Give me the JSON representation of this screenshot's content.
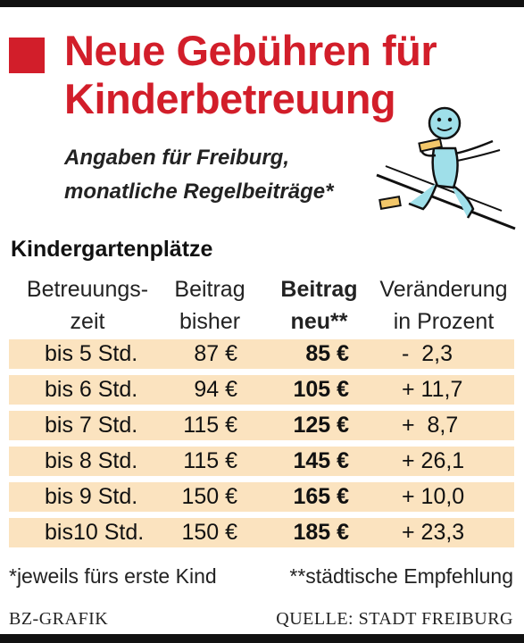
{
  "title": "Neue Gebühren für Kinderbetreuung",
  "subtitle_lines": [
    "Angaben für Freiburg,",
    "monatliche Regelbeiträge*"
  ],
  "section_title": "Kindergartenplätze",
  "headers": {
    "time": [
      "Betreuungs-",
      "zeit"
    ],
    "old": [
      "Beitrag",
      "bisher"
    ],
    "new": [
      "Beitrag",
      "neu**"
    ],
    "change": [
      "Veränderung",
      "in Prozent"
    ]
  },
  "colors": {
    "accent": "#d21e2a",
    "row_shade": "#fbe3bf",
    "mascot_fill": "#9fdfe9"
  },
  "chart_data": {
    "type": "table",
    "title": "Neue Gebühren für Kinderbetreuung",
    "columns": [
      "Betreuungszeit",
      "Beitrag bisher",
      "Beitrag neu",
      "Veränderung in Prozent"
    ],
    "rows": [
      {
        "time": "bis 5 Std.",
        "old": "87 €",
        "new": "85 €",
        "change": "-  2,3"
      },
      {
        "time": "bis 6 Std.",
        "old": "94 €",
        "new": "105 €",
        "change": "+ 11,7"
      },
      {
        "time": "bis 7 Std.",
        "old": "115 €",
        "new": "125 €",
        "change": "+  8,7"
      },
      {
        "time": "bis 8 Std.",
        "old": "115 €",
        "new": "145 €",
        "change": "+ 26,1"
      },
      {
        "time": "bis 9 Std.",
        "old": "150 €",
        "new": "165 €",
        "change": "+ 10,0"
      },
      {
        "time": "bis10 Std.",
        "old": "150 €",
        "new": "185 €",
        "change": "+ 23,3"
      }
    ]
  },
  "footnotes": {
    "left": "*jeweils fürs erste Kind",
    "right": "**städtische Empfehlung"
  },
  "footer": {
    "credit": "BZ-GRAFIK",
    "source": "QUELLE: STADT FREIBURG"
  },
  "mascot_icon": "climbing-child-icon"
}
